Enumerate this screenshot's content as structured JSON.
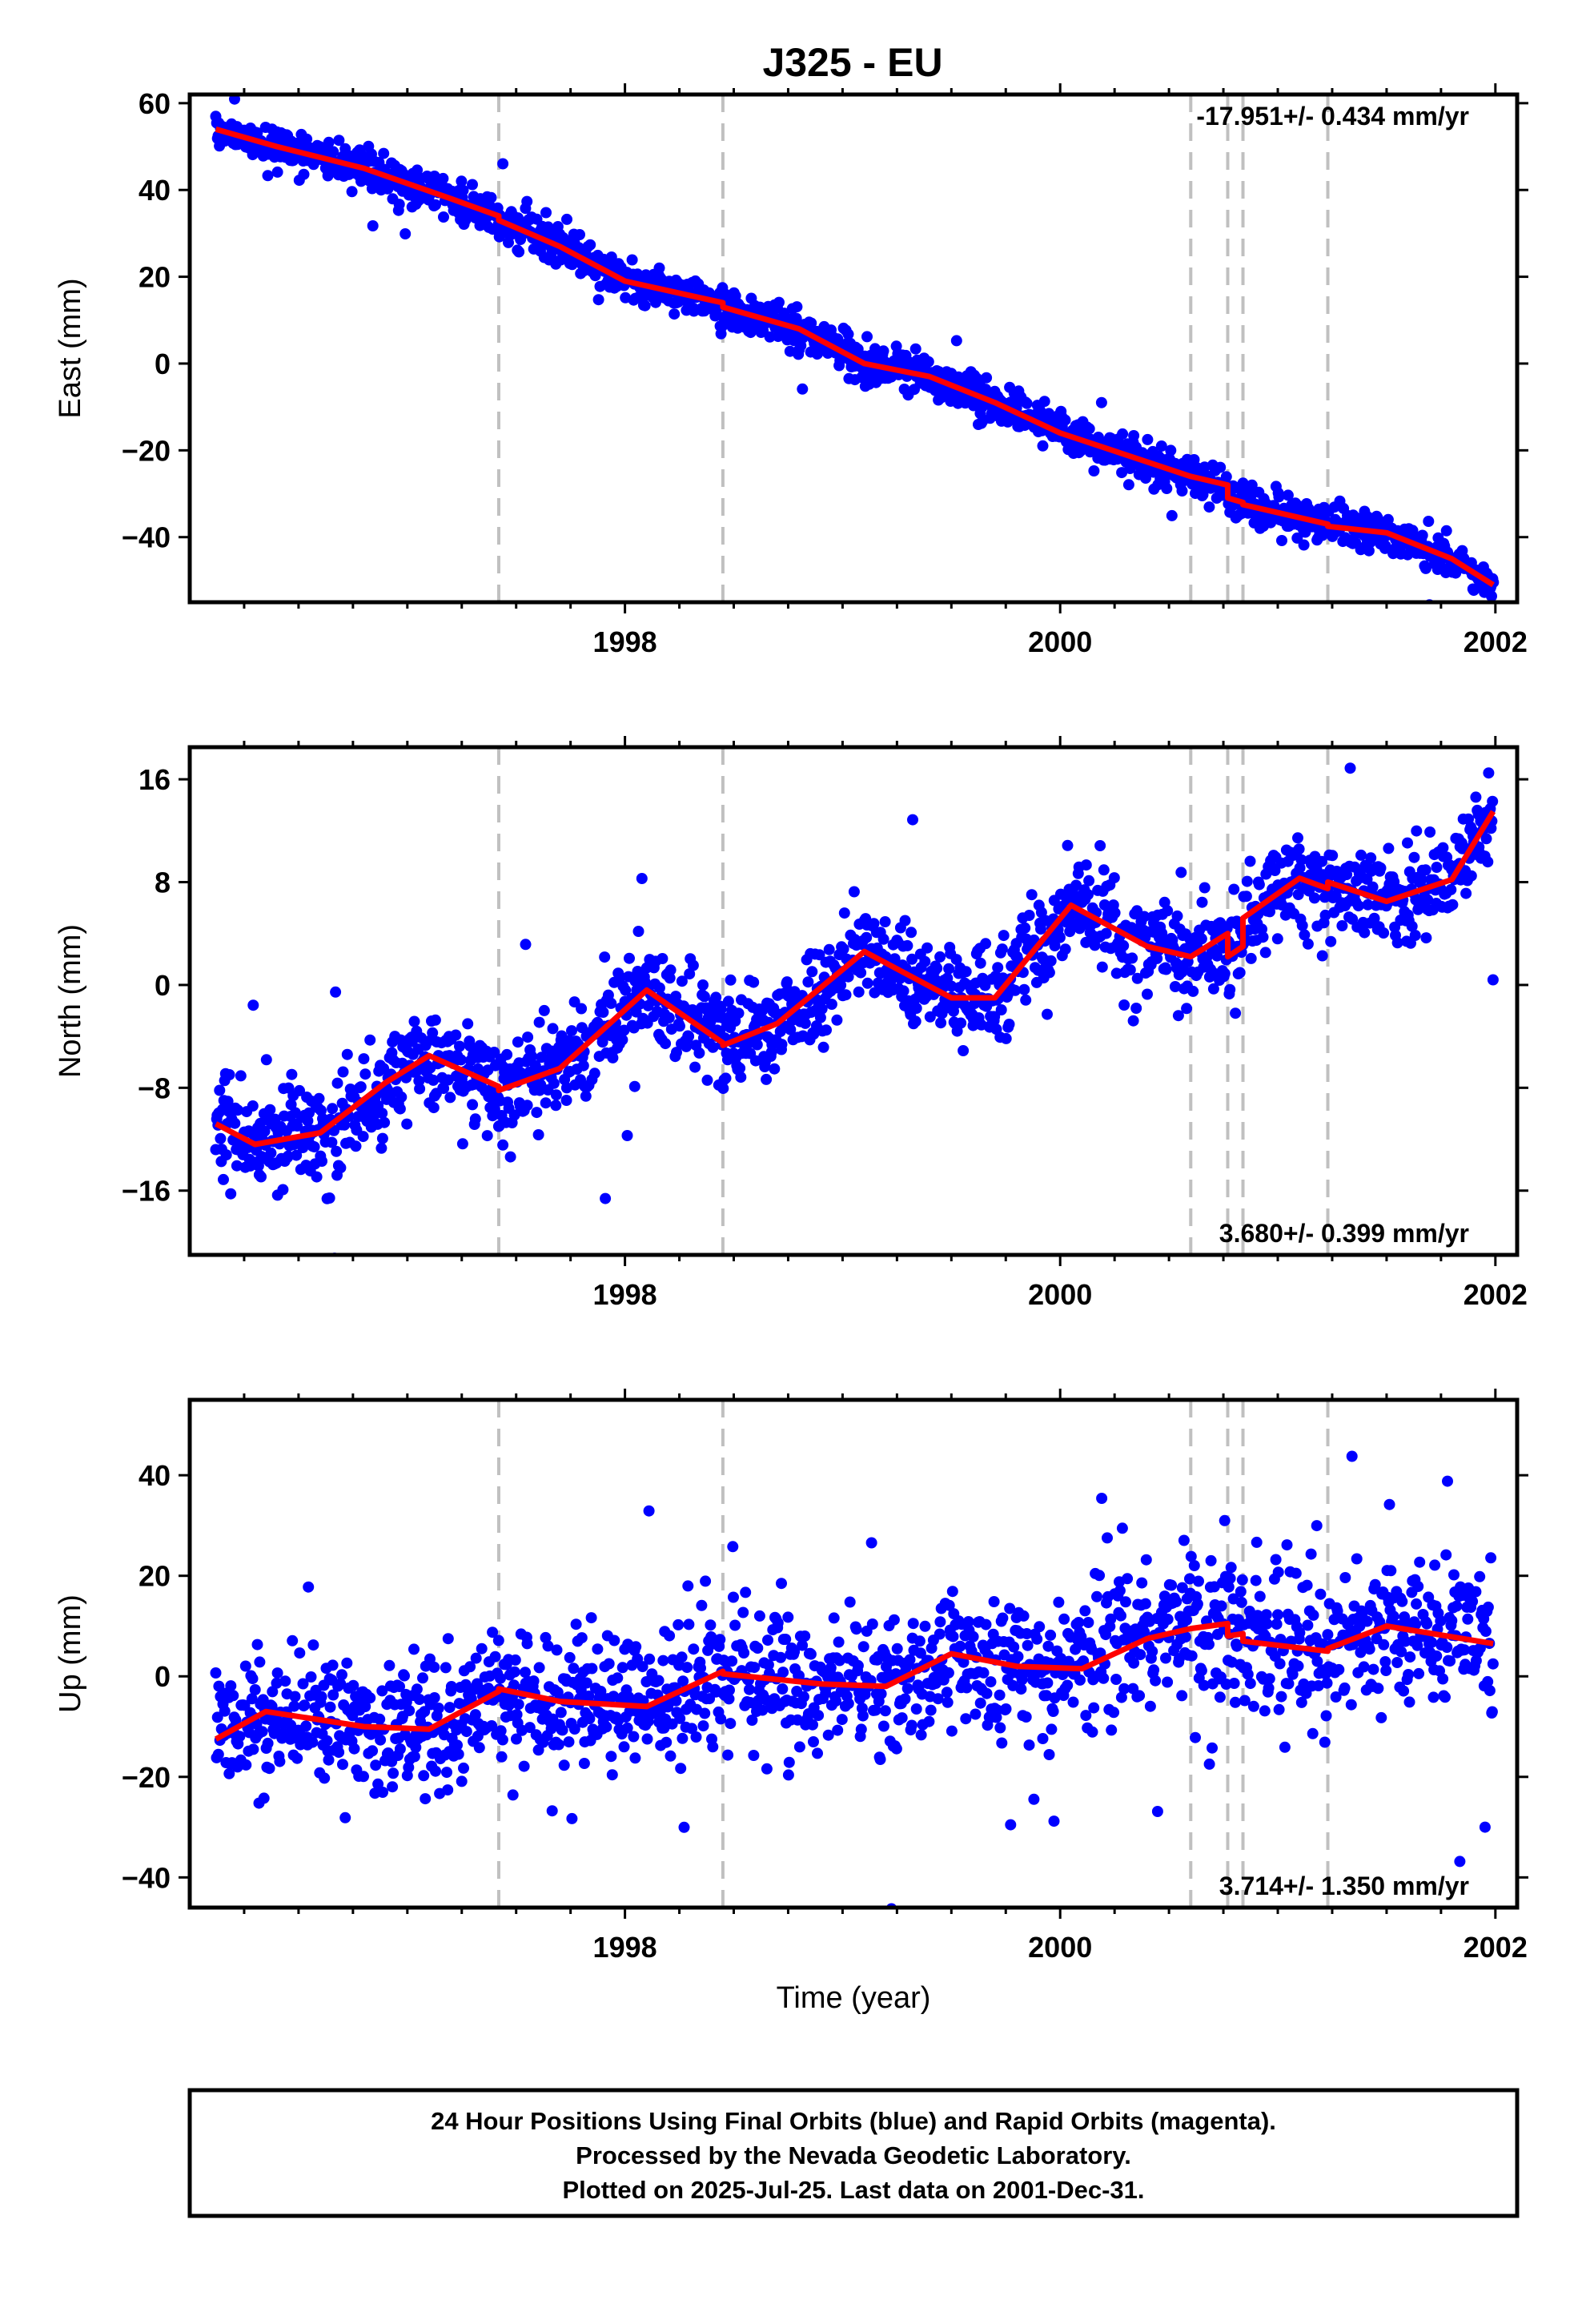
{
  "title": "J325 - EU",
  "colors": {
    "final_orbits": "#0000ff",
    "model": "#ff0000",
    "breaks": "#c0c0c0",
    "frame": "#000000"
  },
  "footer": {
    "lines": [
      "24 Hour Positions Using Final Orbits (blue) and Rapid Orbits (magenta).",
      "Processed by the Nevada Geodetic Laboratory.",
      "Plotted on 2025-Jul-25. Last data on 2001-Dec-31."
    ]
  },
  "chart_data": [
    {
      "type": "scatter",
      "ylabel": "East (mm)",
      "xlabel": "",
      "xlim": [
        1996.0,
        2002.1
      ],
      "ylim": [
        -55,
        62
      ],
      "xticks": [
        1998,
        2000,
        2002
      ],
      "yticks": [
        60,
        40,
        20,
        0,
        -20,
        -40
      ],
      "ytick_labels": [
        "60",
        "40",
        "20",
        "0",
        "−20",
        "−40"
      ],
      "rate_label": "-17.951+/- 0.434 mm/yr",
      "rate_position": "top-right",
      "grid": false,
      "breaks": [
        1997.42,
        1998.45,
        2000.6,
        2000.77,
        2000.84,
        2001.23
      ],
      "series": [
        {
          "kind": "model",
          "x": [
            1996.12,
            1996.4,
            1996.8,
            1997.2,
            1997.42,
            1997.42,
            1997.7,
            1998.0,
            1998.45,
            1998.45,
            1998.8,
            1999.1,
            1999.4,
            1999.7,
            2000.0,
            2000.3,
            2000.6,
            2000.77,
            2000.77,
            2000.84,
            2000.84,
            2001.23,
            2001.23,
            2001.5,
            2001.8,
            2001.99
          ],
          "y": [
            54,
            50,
            45,
            38,
            34,
            33,
            27,
            19,
            14,
            13,
            8,
            0,
            -3,
            -9,
            -16,
            -21,
            -26,
            -28,
            -31,
            -32,
            -32.5,
            -37,
            -37.5,
            -39,
            -45,
            -51
          ]
        },
        {
          "kind": "scatter",
          "x_start": 1996.12,
          "x_end": 2001.99,
          "points": 1700,
          "noise_sd": 2.3,
          "outlier_frac": 0.01,
          "seed": 11
        }
      ]
    },
    {
      "type": "scatter",
      "ylabel": "North (mm)",
      "xlabel": "",
      "xlim": [
        1996.0,
        2002.1
      ],
      "ylim": [
        -21,
        18.5
      ],
      "xticks": [
        1998,
        2000,
        2002
      ],
      "yticks": [
        16,
        8,
        0,
        -8,
        -16
      ],
      "ytick_labels": [
        "16",
        "8",
        "0",
        "−8",
        "−16"
      ],
      "rate_label": "3.680+/- 0.399 mm/yr",
      "rate_position": "bottom-right",
      "grid": false,
      "breaks": [
        1997.42,
        1998.45,
        2000.6,
        2000.77,
        2000.84,
        2001.23
      ],
      "series": [
        {
          "kind": "model",
          "x": [
            1996.12,
            1996.3,
            1996.6,
            1996.9,
            1997.1,
            1997.42,
            1997.42,
            1997.7,
            1998.1,
            1998.45,
            1998.45,
            1998.7,
            1999.1,
            1999.5,
            1999.7,
            2000.05,
            2000.4,
            2000.6,
            2000.77,
            2000.77,
            2000.84,
            2000.84,
            2001.1,
            2001.23,
            2001.23,
            2001.5,
            2001.8,
            2001.99
          ],
          "y": [
            -10.8,
            -12.4,
            -11.5,
            -7.6,
            -5.5,
            -7.9,
            -8.2,
            -6.5,
            -0.4,
            -4.5,
            -4.7,
            -3.0,
            2.6,
            -1.0,
            -1.0,
            6.2,
            3.0,
            2.2,
            4.0,
            2.2,
            3.0,
            5.2,
            8.3,
            7.5,
            8.0,
            6.5,
            8.2,
            13.5
          ]
        },
        {
          "kind": "scatter",
          "x_start": 1996.12,
          "x_end": 2001.99,
          "points": 1700,
          "noise_sd": 1.9,
          "outlier_frac": 0.012,
          "seed": 23
        }
      ]
    },
    {
      "type": "scatter",
      "ylabel": "Up (mm)",
      "xlabel": "Time (year)",
      "xlim": [
        1996.0,
        2002.1
      ],
      "ylim": [
        -46,
        55
      ],
      "xticks": [
        1998,
        2000,
        2002
      ],
      "yticks": [
        40,
        20,
        0,
        -20,
        -40
      ],
      "ytick_labels": [
        "40",
        "20",
        "0",
        "−20",
        "−40"
      ],
      "rate_label": "3.714+/- 1.350 mm/yr",
      "rate_position": "bottom-right",
      "grid": false,
      "breaks": [
        1997.42,
        1998.45,
        2000.6,
        2000.77,
        2000.84,
        2001.23
      ],
      "series": [
        {
          "kind": "model",
          "x": [
            1996.12,
            1996.35,
            1996.8,
            1997.1,
            1997.42,
            1997.42,
            1997.7,
            1998.1,
            1998.45,
            1998.45,
            1998.9,
            1999.2,
            1999.5,
            1999.8,
            2000.1,
            2000.4,
            2000.6,
            2000.77,
            2000.77,
            2000.84,
            2000.84,
            2001.23,
            2001.23,
            2001.5,
            2001.99
          ],
          "y": [
            -12.5,
            -7,
            -10,
            -10.5,
            -3,
            -2.5,
            -5,
            -6,
            1,
            0.5,
            -1.5,
            -2,
            4.5,
            2,
            1.5,
            7.5,
            9.5,
            10.5,
            8,
            8.5,
            7,
            5,
            5.5,
            10,
            6.5
          ]
        },
        {
          "kind": "scatter",
          "x_start": 1996.12,
          "x_end": 2001.99,
          "points": 1600,
          "noise_sd": 7.0,
          "outlier_frac": 0.02,
          "seed": 37
        }
      ]
    }
  ]
}
